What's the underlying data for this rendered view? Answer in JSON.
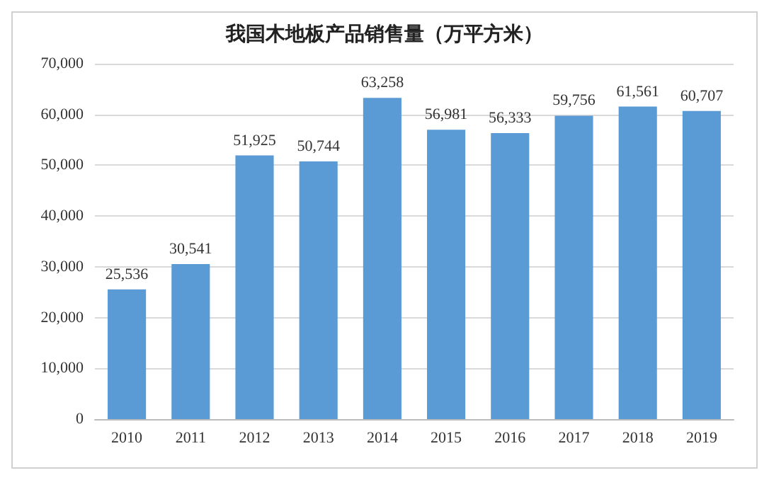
{
  "chart_data": {
    "type": "bar",
    "title": "我国木地板产品销售量（万平方米）",
    "categories": [
      "2010",
      "2011",
      "2012",
      "2013",
      "2014",
      "2015",
      "2016",
      "2017",
      "2018",
      "2019"
    ],
    "values": [
      25536,
      30541,
      51925,
      50744,
      63258,
      56981,
      56333,
      59756,
      61561,
      60707
    ],
    "value_labels": [
      "25,536",
      "30,541",
      "51,925",
      "50,744",
      "63,258",
      "56,981",
      "56,333",
      "59,756",
      "61,561",
      "60,707"
    ],
    "color": "#5b9bd5",
    "ylim": [
      0,
      70000
    ],
    "yticks": [
      0,
      {
        "value": 10000,
        "label": "10,000"
      },
      {
        "value": 20000,
        "label": "20,000"
      },
      {
        "value": 30000,
        "label": "30,000"
      },
      {
        "value": 40000,
        "label": "40,000"
      },
      {
        "value": 50000,
        "label": "50,000"
      },
      {
        "value": 60000,
        "label": "60,000"
      },
      {
        "value": 70000,
        "label": "70,000"
      }
    ],
    "grid": "y"
  }
}
